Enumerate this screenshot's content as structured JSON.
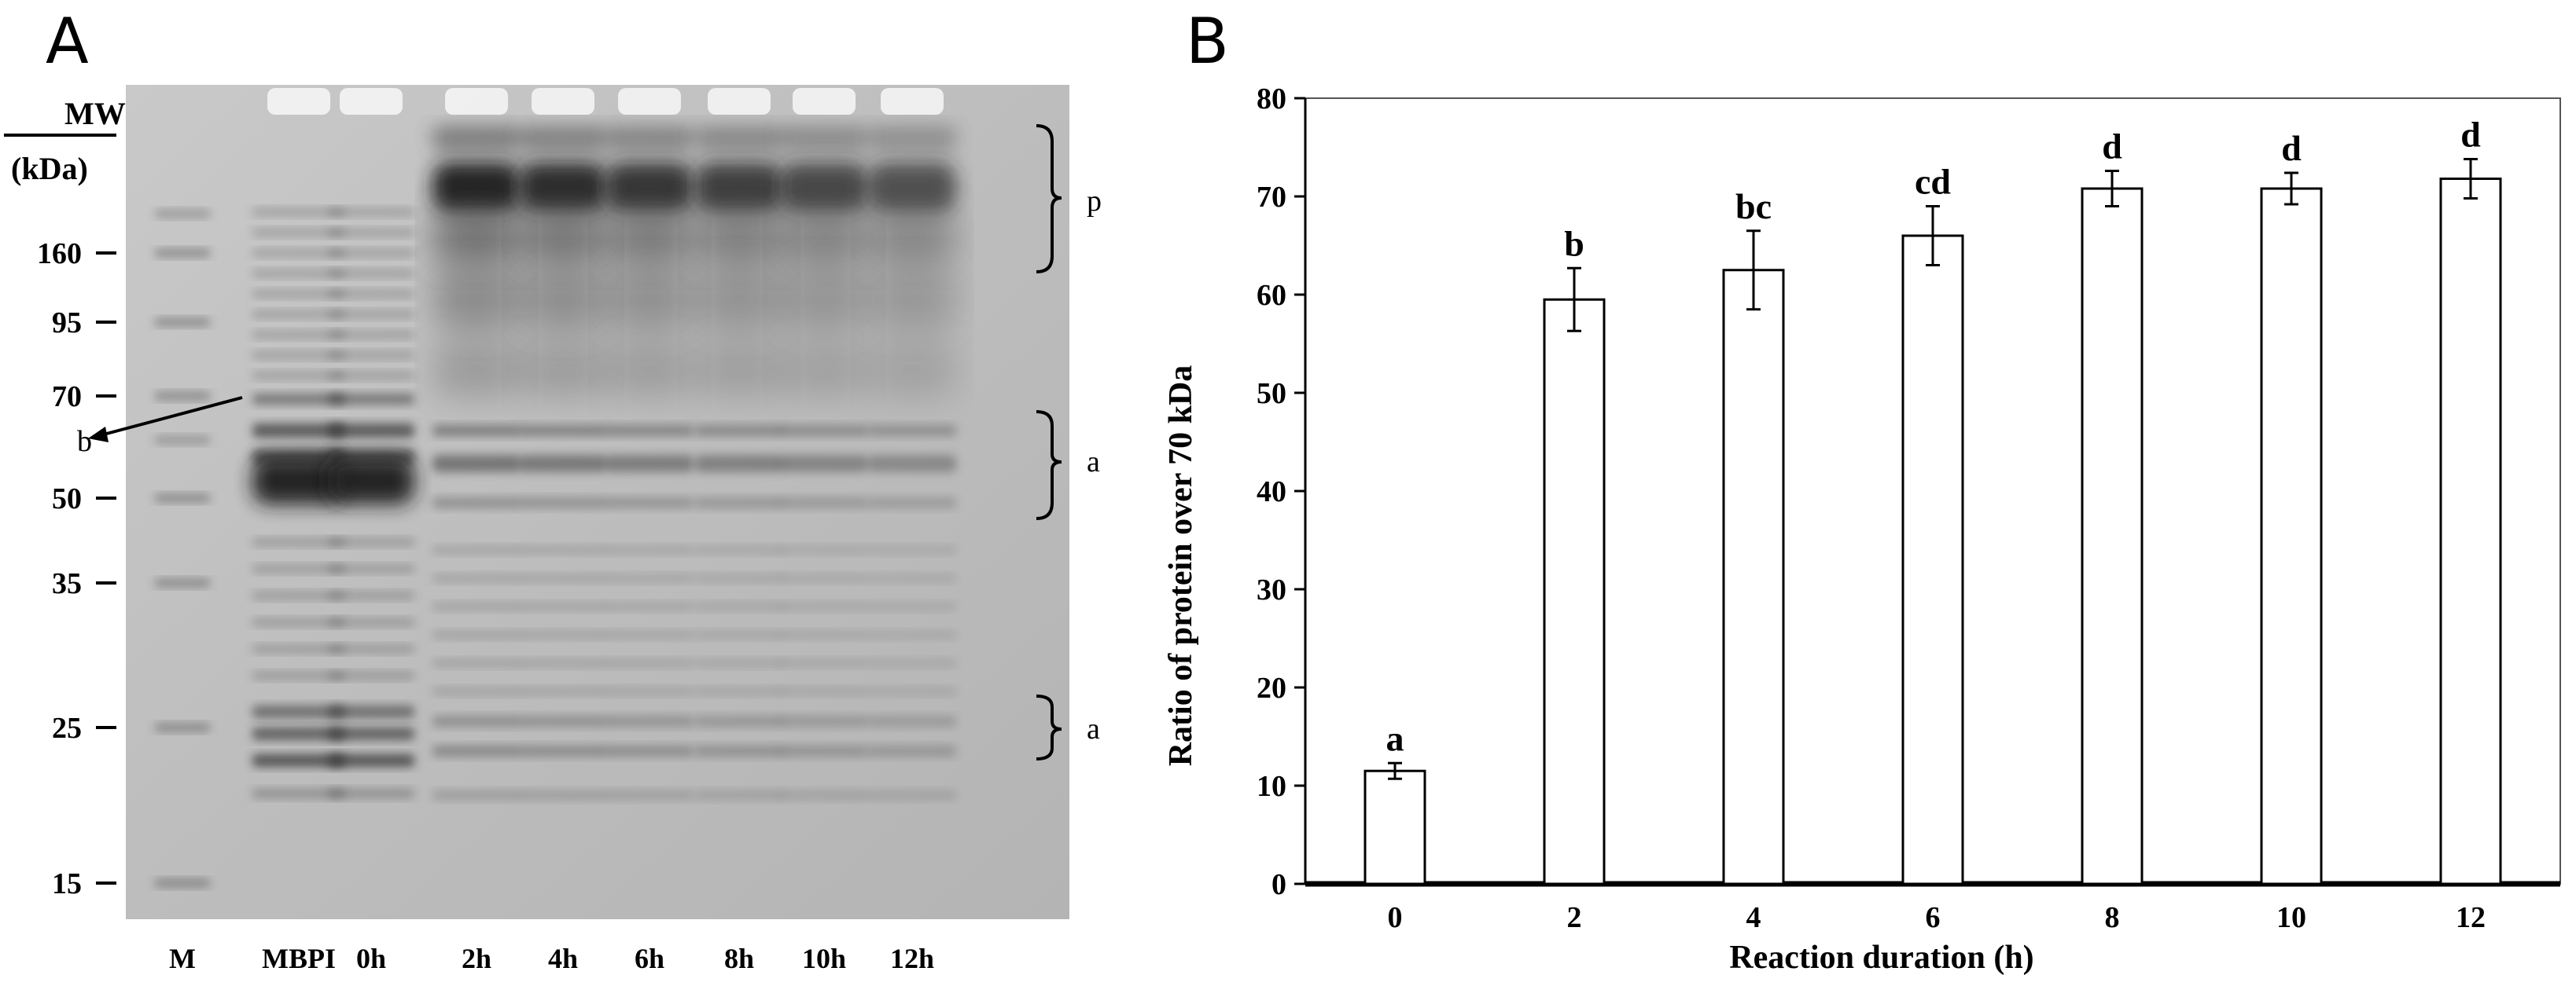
{
  "panel_a": {
    "letter": "A",
    "mw_label_line1": "MW",
    "mw_label_line2": "(kDa)",
    "markers": [
      "160",
      "95",
      "70",
      "50",
      "35",
      "25",
      "15"
    ],
    "lanes": [
      "M",
      "MBPI",
      "0h",
      "2h",
      "4h",
      "6h",
      "8h",
      "10h",
      "12h"
    ],
    "annotations": {
      "p_label": "p",
      "a_label_1": "a",
      "a_label_2": "a",
      "b_label": "b"
    }
  },
  "chart_data": {
    "type": "bar",
    "panel_letter": "B",
    "categories": [
      "0",
      "2",
      "4",
      "6",
      "8",
      "10",
      "12"
    ],
    "series": [
      {
        "values": [
          11.5,
          59.5,
          62.5,
          66,
          70.8,
          70.8,
          71.8
        ],
        "errors": [
          0.8,
          3.2,
          4,
          3,
          1.8,
          1.6,
          2
        ]
      }
    ],
    "significance": [
      "a",
      "b",
      "bc",
      "cd",
      "d",
      "d",
      "d"
    ],
    "xlabel": "Reaction duration (h)",
    "ylabel": "Ratio of protein over 70 kDa",
    "ylim": [
      0,
      80
    ],
    "yticks": [
      "0",
      "10",
      "20",
      "30",
      "40",
      "50",
      "60",
      "70",
      "80"
    ],
    "grid": false,
    "legend": "none",
    "bar_fill": "#ffffff",
    "bar_stroke": "#000000"
  }
}
